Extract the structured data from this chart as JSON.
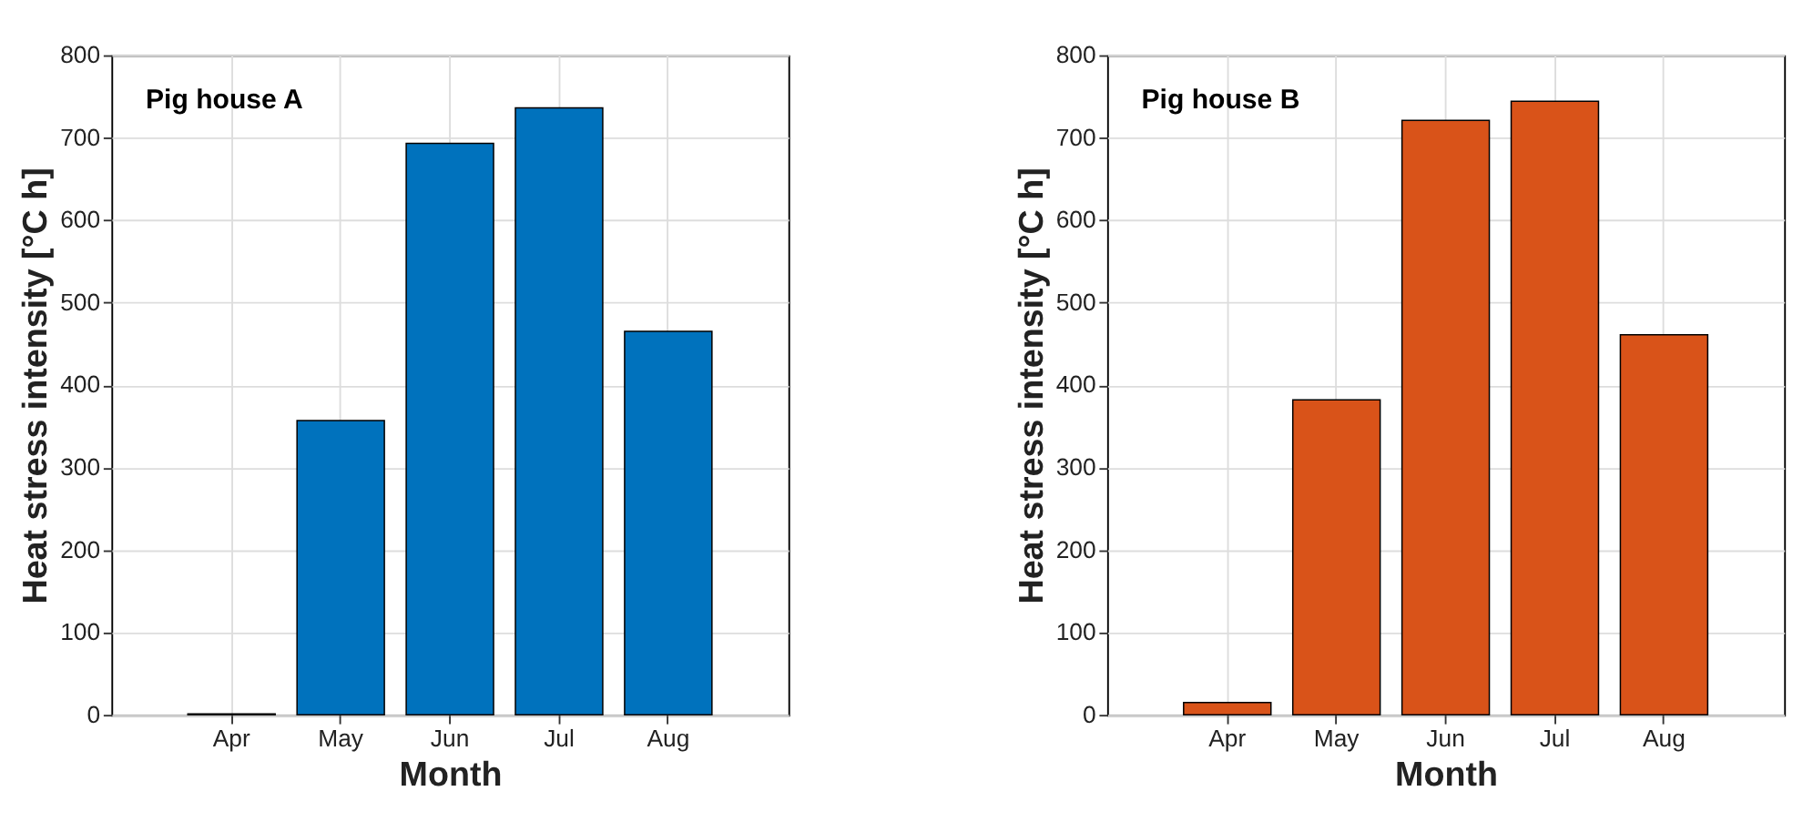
{
  "chart_data": [
    {
      "type": "bar",
      "categories": [
        "Apr",
        "May",
        "Jun",
        "Jul",
        "Aug"
      ],
      "values": [
        1,
        357,
        693,
        736,
        465
      ],
      "color": "#0072bd",
      "xlabel": "Month",
      "ylabel": "Heat stress intensity [°C h]",
      "ylim": [
        0,
        800
      ],
      "yticks": [
        0,
        100,
        200,
        300,
        400,
        500,
        600,
        700,
        800
      ],
      "grid": true,
      "annotations": [
        "Pig house A"
      ]
    },
    {
      "type": "bar",
      "categories": [
        "Apr",
        "May",
        "Jun",
        "Jul",
        "Aug"
      ],
      "values": [
        15,
        382,
        721,
        744,
        461
      ],
      "color": "#d95319",
      "xlabel": "Month",
      "ylabel": "Heat stress intensity [°C h]",
      "ylim": [
        0,
        800
      ],
      "yticks": [
        0,
        100,
        200,
        300,
        400,
        500,
        600,
        700,
        800
      ],
      "grid": true,
      "annotations": [
        "Pig house B"
      ]
    }
  ]
}
